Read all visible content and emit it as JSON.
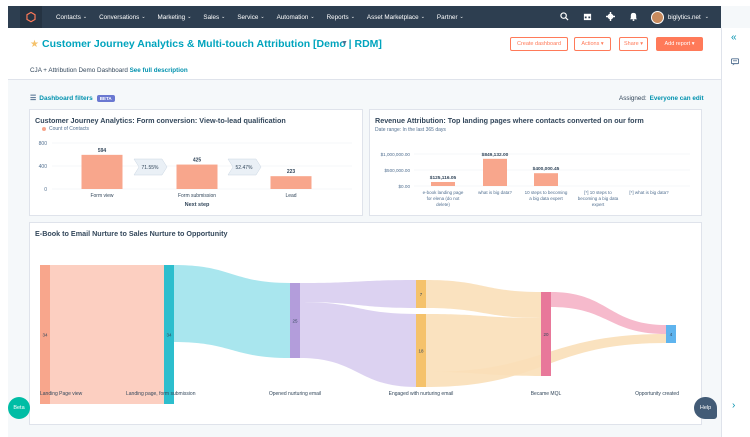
{
  "nav": {
    "logo": "⬡",
    "items": [
      {
        "label": "Contacts"
      },
      {
        "label": "Conversations"
      },
      {
        "label": "Marketing"
      },
      {
        "label": "Sales"
      },
      {
        "label": "Service"
      },
      {
        "label": "Automation"
      },
      {
        "label": "Reports"
      },
      {
        "label": "Asset Marketplace"
      },
      {
        "label": "Partner"
      }
    ],
    "account": "biglytics.net",
    "icons": [
      "search-icon",
      "marketplace-icon",
      "settings-icon",
      "notifications-icon"
    ]
  },
  "header": {
    "title": "Customer Journey Analytics & Multi-touch Attribution [Demo | RDM]",
    "subtitle": "CJA + Attribution Demo Dashboard",
    "see_description": "See full description",
    "buttons": {
      "create": "Create dashboard",
      "actions": "Actions",
      "share": "Share",
      "add_report": "Add report"
    }
  },
  "filters": {
    "label": "Dashboard filters",
    "beta": "BETA",
    "assigned_label": "Assigned:",
    "assigned_value": "Everyone can edit"
  },
  "colors": {
    "accent": "#ff7a59",
    "link": "#0091ae",
    "title": "#00a4bd",
    "nav": "#2d3e50"
  },
  "card1": {
    "title": "Customer Journey Analytics: Form conversion: View-to-lead qualification",
    "legend": "Count of Contacts",
    "xlabel": "Next step"
  },
  "card2": {
    "title": "Revenue Attribution: Top landing pages where contacts converted on our form",
    "daterange": "Date range: In the last 365 days"
  },
  "card3": {
    "title": "E-Book to Email Nurture to Sales Nurture to Opportunity"
  },
  "chart_data": [
    {
      "type": "bar",
      "title": "Customer Journey Analytics: Form conversion: View-to-lead qualification",
      "categories": [
        "Form view",
        "Form submission",
        "Lead"
      ],
      "series": [
        {
          "name": "Count of Contacts",
          "values": [
            594,
            425,
            223
          ]
        }
      ],
      "conversion_rates": [
        "71.55%",
        "52.47%"
      ],
      "yticks": [
        "800",
        "400",
        "0"
      ],
      "ylim": [
        0,
        800
      ],
      "xlabel": "Next step",
      "color": "#f8a68c"
    },
    {
      "type": "bar",
      "title": "Revenue Attribution: Top landing pages where contacts converted on our form",
      "categories": [
        "e-book landing page for elena (do not delete)",
        "what is big data?",
        "10 steps to becoming a big data expert",
        "[*] 10 steps to becoming a big data expert",
        "[*] what is big data?"
      ],
      "category_lines": [
        [
          "e-book landing page",
          "for elena (do not",
          "delete)"
        ],
        [
          "what is big data?"
        ],
        [
          "10 steps to becoming",
          "a big data expert"
        ],
        [
          "[*] 10 steps to",
          "becoming a big data",
          "expert"
        ],
        [
          "[*] what is big data?"
        ]
      ],
      "values": [
        125116.05,
        849132,
        400000.45,
        0,
        0
      ],
      "value_labels": [
        "$125,116.05",
        "$849,132.00",
        "$400,000.45",
        "",
        ""
      ],
      "yticks": [
        "$1,000,000.00",
        "$500,000.00",
        "$0.00"
      ],
      "ylim": [
        0,
        1000000
      ],
      "color": "#f8a68c"
    },
    {
      "type": "sankey",
      "title": "E-Book to Email Nurture to Sales Nurture to Opportunity",
      "stages": [
        "Landing Page view",
        "Landing page, form submission",
        "Opened nurturing email",
        "Engaged with nurturing email",
        "Became MQL",
        "Opportunity created"
      ],
      "nodes": [
        {
          "stage": 0,
          "value": 34,
          "label": "34"
        },
        {
          "stage": 1,
          "value": 34,
          "label": "34"
        },
        {
          "stage": 2,
          "value": 25,
          "label": "25"
        },
        {
          "stage": 3,
          "value": 7,
          "label": "7"
        },
        {
          "stage": 3,
          "value": 18,
          "label": "18"
        },
        {
          "stage": 4,
          "value": 20,
          "label": "20"
        },
        {
          "stage": 5,
          "value": 4,
          "label": "4"
        }
      ]
    }
  ],
  "pills": {
    "beta": "Beta",
    "help": "Help"
  }
}
